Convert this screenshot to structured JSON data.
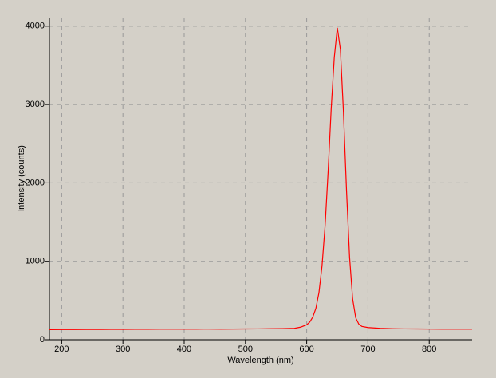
{
  "chart_data": {
    "type": "line",
    "x_label": "Wavelength (nm)",
    "y_label": "Intensity (counts)",
    "x": [
      180,
      200,
      220,
      240,
      260,
      280,
      300,
      320,
      340,
      360,
      380,
      400,
      420,
      440,
      460,
      480,
      500,
      520,
      540,
      560,
      580,
      590,
      600,
      605,
      610,
      615,
      620,
      625,
      630,
      635,
      640,
      645,
      650,
      655,
      660,
      665,
      670,
      675,
      680,
      685,
      690,
      700,
      720,
      740,
      760,
      780,
      800,
      820,
      840,
      860,
      870
    ],
    "series": [
      {
        "color": "#ff0000",
        "values": [
          128,
          130,
          130,
          131,
          131,
          132,
          132,
          133,
          133,
          134,
          134,
          135,
          135,
          136,
          135,
          136,
          137,
          138,
          140,
          141,
          145,
          160,
          190,
          225,
          290,
          400,
          600,
          940,
          1450,
          2150,
          2950,
          3600,
          3980,
          3700,
          2900,
          1900,
          1050,
          520,
          280,
          200,
          170,
          155,
          145,
          140,
          138,
          137,
          136,
          135,
          135,
          134,
          134
        ]
      }
    ],
    "xlim": [
      180,
      870
    ],
    "ylim": [
      0,
      4110
    ],
    "xticks": [
      200,
      300,
      400,
      500,
      600,
      700,
      800
    ],
    "yticks": [
      0,
      1000,
      2000,
      3000,
      4000
    ],
    "grid": true
  }
}
